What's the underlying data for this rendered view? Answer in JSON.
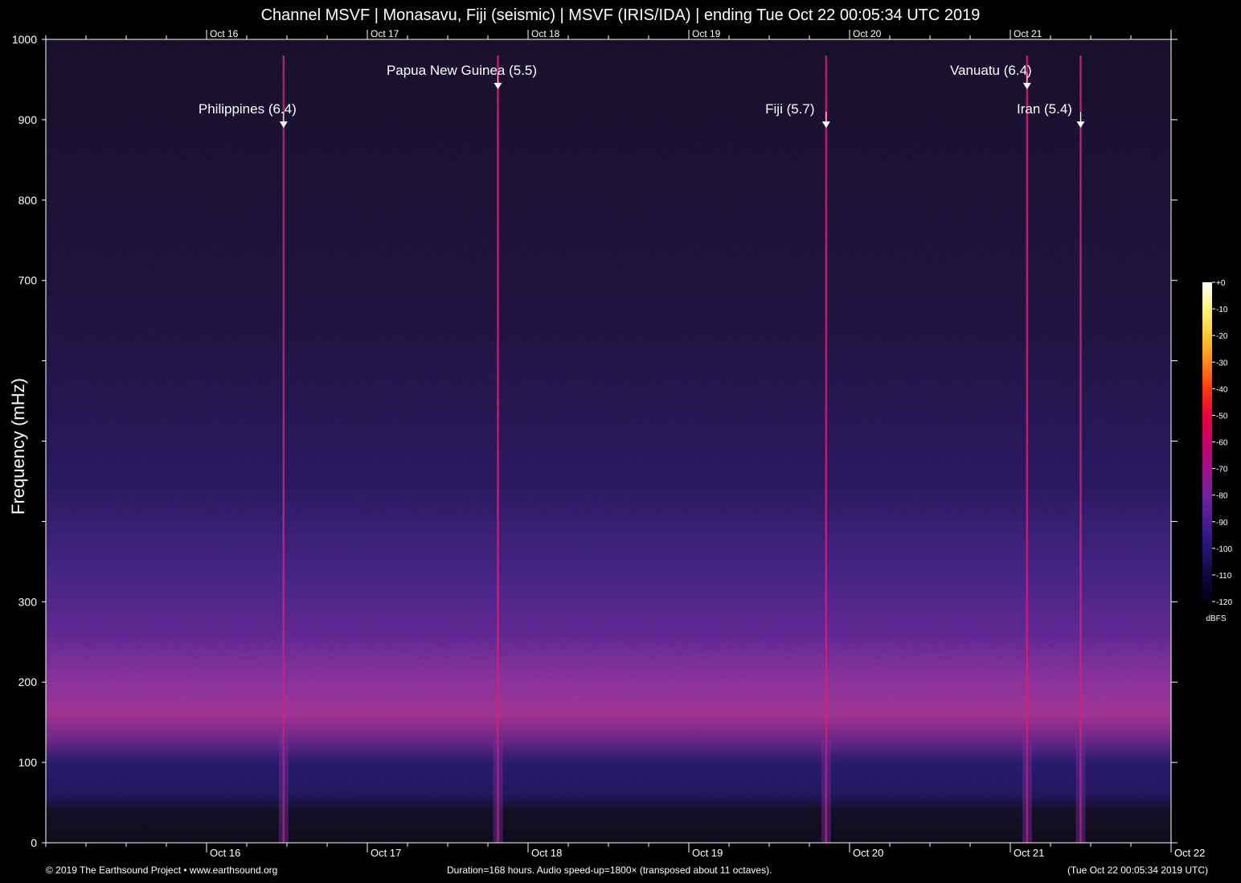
{
  "chart_data": {
    "type": "heatmap",
    "title": "Channel MSVF | Monasavu, Fiji (seismic) | MSVF (IRIS/IDA) | ending Tue Oct 22 00:05:34 UTC 2019",
    "ylabel": "Frequency (mHz)",
    "xlabel": "",
    "ylim": [
      0,
      1000
    ],
    "y_ticks": [
      0,
      100,
      200,
      300,
      400,
      500,
      600,
      700,
      800,
      900,
      1000
    ],
    "y_tick_labels": [
      "0",
      "100",
      "200",
      "300",
      "",
      "",
      "",
      "700",
      "800",
      "900",
      "1000"
    ],
    "x_range_hours": [
      0,
      168
    ],
    "x_ticks": [
      {
        "label": "Oct 16",
        "hour": 24
      },
      {
        "label": "Oct 17",
        "hour": 48
      },
      {
        "label": "Oct 18",
        "hour": 72
      },
      {
        "label": "Oct 19",
        "hour": 96
      },
      {
        "label": "Oct 20",
        "hour": 120
      },
      {
        "label": "Oct 21",
        "hour": 144
      },
      {
        "label": "Oct 22",
        "hour": 168
      }
    ],
    "events": [
      {
        "name": "Philippines (6.4)",
        "hour": 35.5
      },
      {
        "name": "Papua New Guinea (5.5)",
        "hour": 67.5
      },
      {
        "name": "Fiji (5.7)",
        "hour": 116.5
      },
      {
        "name": "Vanuatu (6.4)",
        "hour": 146.5
      },
      {
        "name": "Iran (5.4)",
        "hour": 154.5
      }
    ],
    "colorbar": {
      "label": "dBFS",
      "range": [
        -120,
        0
      ],
      "ticks": [
        "+0",
        "-10",
        "-20",
        "-30",
        "-40",
        "-50",
        "-60",
        "-70",
        "-80",
        "-90",
        "-100",
        "-110",
        "-120"
      ],
      "colors": [
        "#ffffff",
        "#fff27a",
        "#ffc933",
        "#ff8a1a",
        "#ff3a0f",
        "#e8003a",
        "#c8006a",
        "#a0108a",
        "#7520a0",
        "#4a1c9a",
        "#251472",
        "#0d0a40",
        "#000010"
      ]
    },
    "grid": false
  },
  "footer": {
    "left": "© 2019 The Earthsound Project • www.earthsound.org",
    "center": "Duration=168 hours. Audio speed-up=1800× (transposed about 11 octaves).",
    "right": "(Tue Oct 22 00:05:34 2019 UTC)"
  }
}
